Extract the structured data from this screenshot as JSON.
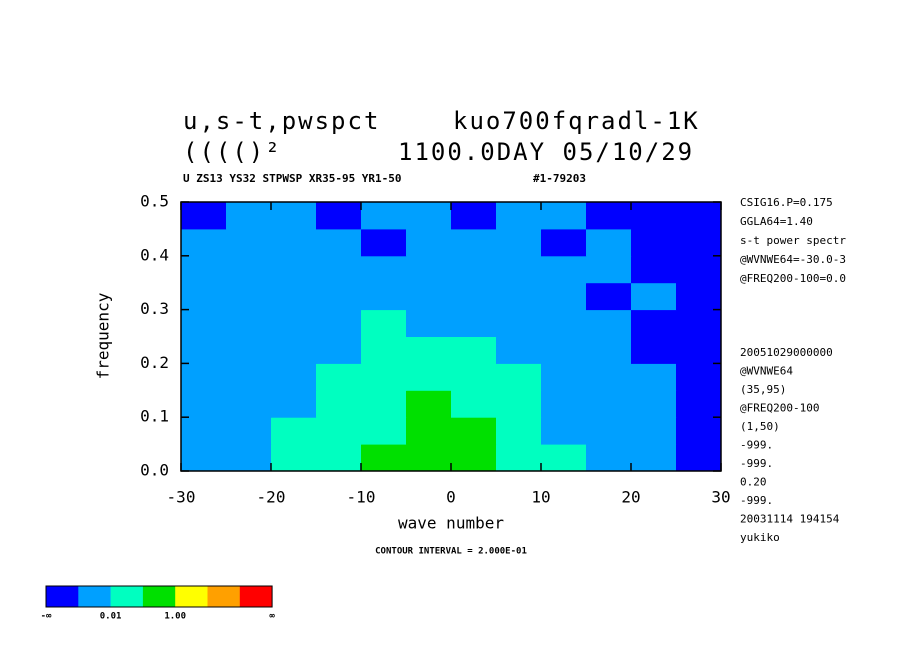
{
  "chart_data": {
    "type": "contour",
    "title": [
      "u,s-t,pwspct",
      "kuo700fqradl-1K"
    ],
    "title2": [
      "(((()²",
      "1100.0DAY 05/10/29"
    ],
    "subtitle": [
      "U ZS13 YS32 STPWSP XR35-95 YR1-50",
      "#1-79203"
    ],
    "xlabel": "wave number",
    "ylabel": "frequency",
    "footer": "CONTOUR INTERVAL = 2.000E-01",
    "xlim": [
      -30,
      30
    ],
    "ylim": [
      0,
      0.5
    ],
    "xticks": [
      -30,
      -20,
      -10,
      0,
      10,
      20,
      30
    ],
    "yticks": [
      {
        "value": 0,
        "label": "0.0"
      },
      {
        "value": 0.1,
        "label": "0.1"
      },
      {
        "value": 0.2,
        "label": "0.2"
      },
      {
        "value": 0.3,
        "label": "0.3"
      },
      {
        "value": 0.4,
        "label": "0.4"
      },
      {
        "value": 0.5,
        "label": "0.5"
      }
    ],
    "x": [
      -30,
      -25,
      -20,
      -15,
      -10,
      -5,
      0,
      5,
      10,
      15,
      20,
      25,
      30
    ],
    "y": [
      0,
      0.05,
      0.1,
      0.15,
      0.2,
      0.25,
      0.3,
      0.35,
      0.4,
      0.45,
      0.5
    ],
    "z": [
      [
        1,
        1,
        2,
        2,
        3,
        3,
        3,
        2,
        2,
        1,
        1,
        0
      ],
      [
        1,
        1,
        2,
        2,
        2,
        3,
        3,
        2,
        1,
        1,
        1,
        0
      ],
      [
        1,
        1,
        1,
        2,
        2,
        3,
        2,
        2,
        1,
        1,
        1,
        0
      ],
      [
        1,
        1,
        1,
        2,
        2,
        2,
        2,
        2,
        1,
        1,
        1,
        0
      ],
      [
        1,
        1,
        1,
        1,
        2,
        2,
        2,
        1,
        1,
        1,
        0,
        0
      ],
      [
        1,
        1,
        1,
        1,
        2,
        1,
        1,
        1,
        1,
        1,
        0,
        0
      ],
      [
        1,
        1,
        1,
        1,
        1,
        1,
        1,
        1,
        1,
        0,
        1,
        0
      ],
      [
        1,
        1,
        1,
        1,
        1,
        1,
        1,
        1,
        1,
        1,
        0,
        0
      ],
      [
        1,
        1,
        1,
        1,
        0,
        1,
        1,
        1,
        0,
        1,
        0,
        0
      ],
      [
        0,
        1,
        1,
        0,
        1,
        1,
        0,
        1,
        1,
        0,
        0,
        0
      ]
    ],
    "colors": [
      "#0000ff",
      "#00a0ff",
      "#00ffc0",
      "#00e000",
      "#ffff00",
      "#ffa000",
      "#ff0000"
    ],
    "colorbar_labels": [
      {
        "value": 0,
        "label": "-∞"
      },
      {
        "value": 2,
        "label": "0.01"
      },
      {
        "value": 4,
        "label": "1.00"
      },
      {
        "value": 7,
        "label": "∞"
      }
    ],
    "right_text": [
      "CSIG16.P=0.175",
      "GGLA64=1.40",
      "s-t power spectr",
      "@WVNWE64=-30.0-3",
      "@FREQ200-100=0.0",
      "20051029000000",
      "@WVNWE64",
      "(35,95)",
      "@FREQ200-100",
      "(1,50)",
      "-999.",
      "-999.",
      "0.20",
      "-999.",
      "20031114 194154",
      "yukiko"
    ]
  }
}
